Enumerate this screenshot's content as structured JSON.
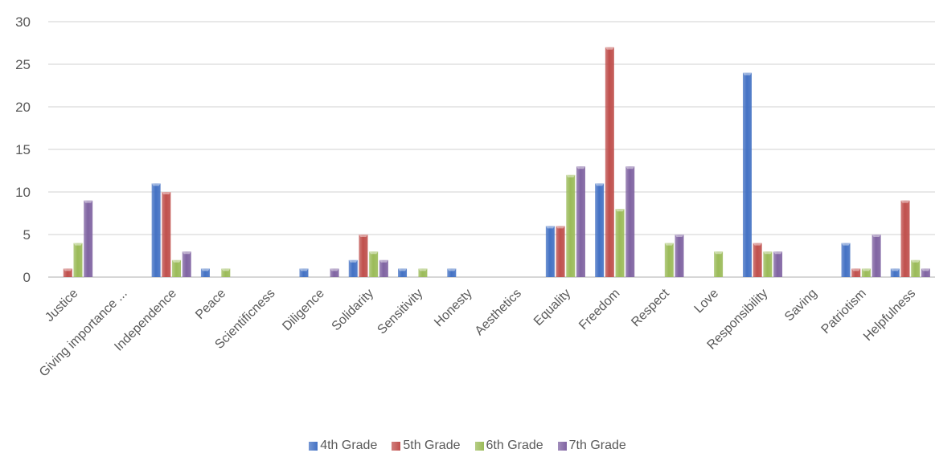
{
  "chart_data": {
    "type": "bar",
    "title": "",
    "xlabel": "",
    "ylabel": "",
    "ylim": [
      0,
      30
    ],
    "yticks": [
      0,
      5,
      10,
      15,
      20,
      25,
      30
    ],
    "grid": true,
    "legend_position": "bottom",
    "categories": [
      "Justice",
      "Giving importance ...",
      "Independence",
      "Peace",
      "Scientificness",
      "Diligence",
      "Solidarity",
      "Sensitivity",
      "Honesty",
      "Aesthetics",
      "Equality",
      "Freedom",
      "Respect",
      "Love",
      "Responsibility",
      "Saving",
      "Patriotism",
      "Helpfulness"
    ],
    "series": [
      {
        "name": "4th Grade",
        "color": "#4472C4",
        "values": [
          0,
          0,
          11,
          1,
          0,
          1,
          2,
          1,
          1,
          0,
          6,
          11,
          0,
          0,
          24,
          0,
          4,
          1
        ]
      },
      {
        "name": "5th Grade",
        "color": "#C0504D",
        "values": [
          1,
          0,
          10,
          0,
          0,
          0,
          5,
          0,
          0,
          0,
          6,
          27,
          0,
          0,
          4,
          0,
          1,
          9
        ]
      },
      {
        "name": "6th Grade",
        "color": "#9BBB59",
        "values": [
          4,
          0,
          2,
          1,
          0,
          0,
          3,
          1,
          0,
          0,
          12,
          8,
          4,
          3,
          3,
          0,
          1,
          2
        ]
      },
      {
        "name": "7th Grade",
        "color": "#8064A2",
        "values": [
          9,
          0,
          3,
          0,
          0,
          1,
          2,
          0,
          0,
          0,
          13,
          13,
          5,
          0,
          3,
          0,
          5,
          1
        ]
      }
    ]
  }
}
